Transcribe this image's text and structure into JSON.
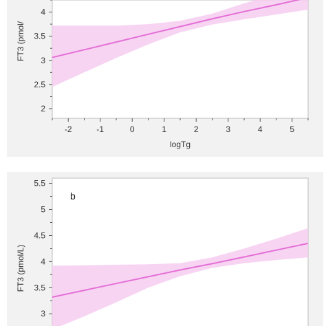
{
  "colors": {
    "fit_line": "#e46fd6",
    "confidence_band": "#f7cdf1",
    "axis": "#555555",
    "panel_border": "#bdbdbd",
    "panel_background": "#f2f2f2",
    "text": "#333333"
  },
  "chart_data": [
    {
      "type": "line",
      "panel_label": "",
      "title": "",
      "xlabel": "logTg",
      "ylabel": "FT3 (pmol/",
      "xlim": [
        -2.5,
        5.5
      ],
      "ylim": [
        1.8,
        4.25
      ],
      "x_ticks": [
        -2,
        -1,
        0,
        1,
        2,
        3,
        4,
        5
      ],
      "x_tick_labels": [
        "-2",
        "-1",
        "0",
        "1",
        "2",
        "3",
        "4",
        "5"
      ],
      "y_ticks": [
        2,
        2.5,
        3,
        3.5,
        4
      ],
      "y_tick_labels": [
        "2",
        "2.5",
        "3",
        "3.5",
        "4"
      ],
      "grid": false,
      "series": [
        {
          "x": [
            -2.5,
            -1.5,
            -0.5,
            0.5,
            1.5,
            2.5,
            3.5,
            4.5,
            5.5
          ],
          "fit": [
            3.06,
            3.22,
            3.38,
            3.54,
            3.7,
            3.86,
            4.01,
            4.15,
            4.3
          ],
          "ci_lower": [
            2.45,
            2.75,
            3.05,
            3.33,
            3.58,
            3.74,
            3.85,
            3.95,
            4.05
          ],
          "ci_upper": [
            3.72,
            3.72,
            3.72,
            3.75,
            3.82,
            3.97,
            4.18,
            4.38,
            4.58
          ]
        }
      ]
    },
    {
      "type": "line",
      "panel_label": "b",
      "title": "",
      "xlabel": "",
      "ylabel": "FT3 (pmol/L)",
      "xlim": [
        0,
        10
      ],
      "ylim": [
        2.7,
        5.6
      ],
      "x_ticks": [],
      "x_tick_labels": [],
      "y_ticks": [
        3,
        3.5,
        4,
        4.5,
        5,
        5.5
      ],
      "y_tick_labels": [
        "3",
        "3.5",
        "4",
        "4.5",
        "5",
        "5.5"
      ],
      "grid": false,
      "series": [
        {
          "x": [
            0,
            1.25,
            2.5,
            3.75,
            5,
            6.25,
            7.5,
            8.75,
            10
          ],
          "fit": [
            3.32,
            3.45,
            3.58,
            3.71,
            3.84,
            3.96,
            4.09,
            4.22,
            4.35
          ],
          "ci_lower": [
            2.7,
            2.95,
            3.22,
            3.5,
            3.72,
            3.88,
            3.97,
            4.03,
            4.08
          ],
          "ci_upper": [
            3.92,
            3.93,
            3.94,
            3.95,
            3.97,
            4.08,
            4.25,
            4.44,
            4.64
          ]
        }
      ]
    }
  ]
}
